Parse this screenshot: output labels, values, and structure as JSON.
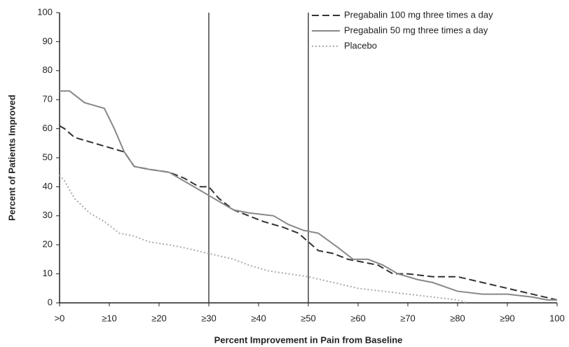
{
  "chart_data": {
    "type": "line",
    "xlabel": "Percent Improvement in Pain from Baseline",
    "ylabel": "Percent of Patients Improved",
    "xlim": [
      0,
      100
    ],
    "ylim": [
      0,
      100
    ],
    "xticks": [
      {
        "value": 0,
        "label": ">0"
      },
      {
        "value": 10,
        "label": "≥10"
      },
      {
        "value": 20,
        "label": "≥20"
      },
      {
        "value": 30,
        "label": "≥30"
      },
      {
        "value": 40,
        "label": "≥40"
      },
      {
        "value": 50,
        "label": "≥50"
      },
      {
        "value": 60,
        "label": "≥60"
      },
      {
        "value": 70,
        "label": "≥70"
      },
      {
        "value": 80,
        "label": "≥80"
      },
      {
        "value": 90,
        "label": "≥90"
      },
      100
    ],
    "yticks": [
      0,
      10,
      20,
      30,
      40,
      50,
      60,
      70,
      80,
      90,
      100
    ],
    "reference_lines_x": [
      30,
      50
    ],
    "legend": "top-right",
    "series": [
      {
        "name": "Pregabalin 100 mg three times a day",
        "color": "#333333",
        "dash": "dashed",
        "x": [
          0,
          1,
          3,
          7,
          11,
          13,
          15,
          18,
          22,
          25,
          28,
          30,
          32,
          35,
          38,
          41,
          45,
          48,
          50,
          52,
          55,
          58,
          61,
          64,
          67,
          70,
          75,
          80,
          85,
          90,
          95,
          100
        ],
        "values": [
          61,
          60,
          57,
          55,
          53,
          52,
          47,
          46,
          45,
          43,
          40,
          40,
          36,
          32,
          30,
          28,
          26,
          24,
          21,
          18,
          17,
          15,
          14,
          13,
          10,
          10,
          9,
          9,
          7,
          5,
          3,
          1
        ]
      },
      {
        "name": "Pregabalin 50 mg three times a day",
        "color": "#888888",
        "dash": "solid",
        "x": [
          0,
          2,
          5,
          9,
          11,
          13,
          15,
          18,
          22,
          25,
          28,
          30,
          32,
          35,
          38,
          43,
          46,
          49,
          52,
          56,
          59,
          62,
          65,
          68,
          72,
          75,
          80,
          85,
          90,
          95,
          98,
          100
        ],
        "values": [
          73,
          73,
          69,
          67,
          60,
          52,
          47,
          46,
          45,
          42,
          39,
          37,
          35,
          32,
          31,
          30,
          27,
          25,
          24,
          19,
          15,
          15,
          13,
          10,
          8,
          7,
          4,
          3,
          3,
          2,
          1,
          1
        ]
      },
      {
        "name": "Placebo",
        "color": "#aaaaaa",
        "dash": "dotted",
        "x": [
          0,
          1,
          3,
          6,
          9,
          12,
          15,
          18,
          22,
          25,
          30,
          35,
          38,
          42,
          46,
          50,
          55,
          60,
          65,
          70,
          75,
          80,
          82
        ],
        "values": [
          44,
          42,
          36,
          31,
          28,
          24,
          23,
          21,
          20,
          19,
          17,
          15,
          13,
          11,
          10,
          9,
          7,
          5,
          4,
          3,
          2,
          1,
          0
        ]
      }
    ]
  }
}
